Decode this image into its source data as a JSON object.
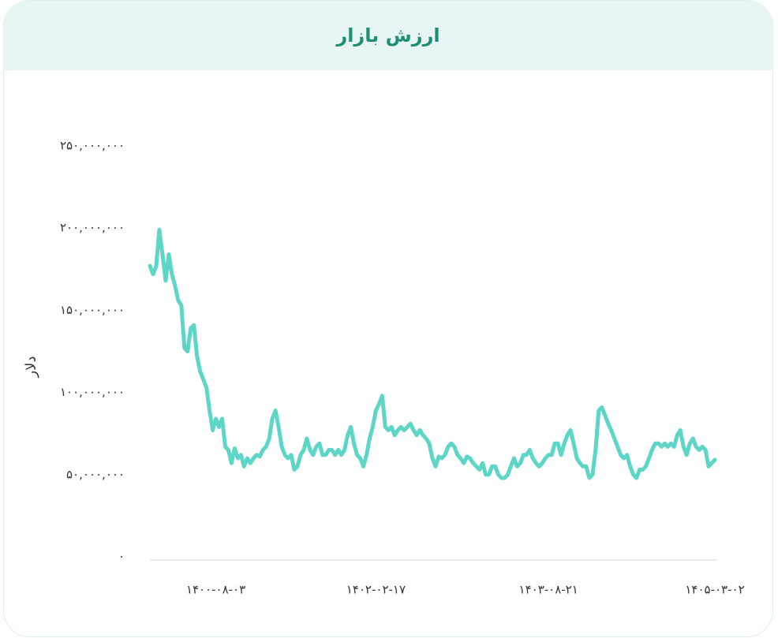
{
  "chart_data": {
    "type": "line",
    "title": "ارزش بازار",
    "ylabel": "دلار",
    "color": "#5dd6c7",
    "categories": [
      null,
      null,
      null,
      null,
      null,
      null,
      null,
      null,
      null,
      null,
      null,
      null,
      null,
      null,
      null,
      null,
      null,
      null,
      null,
      null,
      null,
      "۱۴۰۰-۰۸-۰۳",
      null,
      null,
      null,
      null,
      null,
      null,
      null,
      null,
      null,
      null,
      null,
      null,
      null,
      null,
      null,
      null,
      null,
      null,
      null,
      null,
      null,
      null,
      null,
      null,
      null,
      null,
      null,
      null,
      null,
      null,
      null,
      null,
      null,
      null,
      null,
      null,
      null,
      null,
      null,
      null,
      null,
      null,
      null,
      null,
      null,
      null,
      null,
      null,
      null,
      null,
      "۱۴۰۲-۰۲-۱۷",
      null,
      null,
      null,
      null,
      null,
      null,
      null,
      null,
      null,
      null,
      null,
      null,
      null,
      null,
      null,
      null,
      null,
      null,
      null,
      null,
      null,
      null,
      null,
      null,
      null,
      null,
      null,
      null,
      null,
      null,
      null,
      null,
      null,
      null,
      null,
      null,
      null,
      null,
      null,
      null,
      null,
      null,
      null,
      null,
      null,
      null,
      null,
      null,
      null,
      null,
      null,
      null,
      null,
      null,
      "۱۴۰۳-۰۸-۲۱",
      null,
      null,
      null,
      null,
      null,
      null,
      null,
      null,
      null,
      null,
      null,
      null,
      null,
      null,
      null,
      null,
      null,
      null,
      null,
      null,
      null,
      null,
      null,
      null,
      null,
      null,
      null,
      null,
      null,
      null,
      null,
      null,
      null,
      null,
      null,
      null,
      null,
      null,
      null,
      null,
      null,
      null,
      null,
      null,
      null,
      null,
      null,
      null,
      null,
      null,
      null,
      null,
      "۱۴۰۵-۰۳-۰۲"
    ],
    "values": [
      177000000,
      172000000,
      177000000,
      199000000,
      184000000,
      168000000,
      184000000,
      172000000,
      165000000,
      156000000,
      153000000,
      127000000,
      125000000,
      139000000,
      141000000,
      122000000,
      113000000,
      108000000,
      103000000,
      89000000,
      77000000,
      84000000,
      79000000,
      84000000,
      67000000,
      65000000,
      57000000,
      66000000,
      60000000,
      62000000,
      55000000,
      60000000,
      57000000,
      60000000,
      62000000,
      61000000,
      65000000,
      67000000,
      72000000,
      84000000,
      89000000,
      79000000,
      67000000,
      62000000,
      60000000,
      62000000,
      53000000,
      55000000,
      62000000,
      65000000,
      72000000,
      65000000,
      62000000,
      67000000,
      69000000,
      62000000,
      62000000,
      65000000,
      65000000,
      62000000,
      65000000,
      62000000,
      65000000,
      74000000,
      79000000,
      69000000,
      62000000,
      60000000,
      55000000,
      62000000,
      72000000,
      79000000,
      89000000,
      93000000,
      98000000,
      79000000,
      77000000,
      79000000,
      74000000,
      77000000,
      79000000,
      77000000,
      79000000,
      81000000,
      77000000,
      74000000,
      77000000,
      74000000,
      72000000,
      69000000,
      60000000,
      55000000,
      61000000,
      60000000,
      62000000,
      67000000,
      69000000,
      67000000,
      62000000,
      60000000,
      57000000,
      61000000,
      60000000,
      57000000,
      55000000,
      53000000,
      57000000,
      50000000,
      50000000,
      55000000,
      55000000,
      50000000,
      48000000,
      48000000,
      50000000,
      55000000,
      60000000,
      55000000,
      57000000,
      62000000,
      62000000,
      65000000,
      60000000,
      57000000,
      55000000,
      57000000,
      60000000,
      62000000,
      62000000,
      69000000,
      69000000,
      62000000,
      69000000,
      74000000,
      77000000,
      69000000,
      60000000,
      57000000,
      55000000,
      55000000,
      48000000,
      50000000,
      65000000,
      89000000,
      91000000,
      86000000,
      81000000,
      77000000,
      72000000,
      67000000,
      62000000,
      60000000,
      62000000,
      55000000,
      50000000,
      48000000,
      53000000,
      53000000,
      55000000,
      60000000,
      65000000,
      69000000,
      69000000,
      67000000,
      69000000,
      67000000,
      69000000,
      67000000,
      74000000,
      77000000,
      67000000,
      62000000,
      69000000,
      72000000,
      67000000,
      65000000,
      67000000,
      65000000,
      55000000,
      57000000,
      59000000
    ],
    "ylim": [
      0,
      250000000
    ],
    "yticks": [
      {
        "value": 0,
        "label": "۰"
      },
      {
        "value": 50000000,
        "label": "۵۰,۰۰۰,۰۰۰"
      },
      {
        "value": 100000000,
        "label": "۱۰۰,۰۰۰,۰۰۰"
      },
      {
        "value": 150000000,
        "label": "۱۵۰,۰۰۰,۰۰۰"
      },
      {
        "value": 200000000,
        "label": "۲۰۰,۰۰۰,۰۰۰"
      },
      {
        "value": 250000000,
        "label": "۲۵۰,۰۰۰,۰۰۰"
      }
    ],
    "grid": false
  }
}
